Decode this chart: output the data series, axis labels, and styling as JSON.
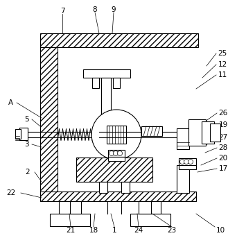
{
  "bg_color": "#ffffff",
  "line_color": "#000000",
  "figsize": [
    3.42,
    3.43
  ],
  "dpi": 100
}
